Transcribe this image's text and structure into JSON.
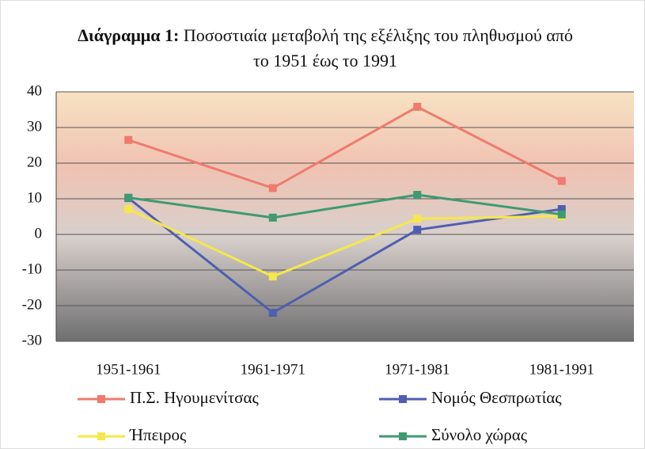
{
  "chart_data": {
    "type": "line",
    "title_label": "Διάγραμμα 1:",
    "title": "Ποσοστιαία μεταβολή της εξέλιξης του πληθυσμού από το 1951 έως το 1991",
    "categories": [
      "1951-1961",
      "1961-1971",
      "1971-1981",
      "1981-1991"
    ],
    "series": [
      {
        "name": "Π.Σ. Ηγουμενίτσας",
        "color": "#f07a6e",
        "values": [
          26.5,
          13,
          35.8,
          15
        ]
      },
      {
        "name": "Νομός Θεσπρωτίας",
        "color": "#4f5fb0",
        "values": [
          10.2,
          -22,
          1.3,
          7.1
        ]
      },
      {
        "name": "Ήπειρος",
        "color": "#f5e84a",
        "values": [
          7.1,
          -11.8,
          4.4,
          5.1
        ]
      },
      {
        "name": "Σύνολο χώρας",
        "color": "#3e9a72",
        "values": [
          10.3,
          4.7,
          11.1,
          5.6
        ]
      }
    ],
    "ylim": [
      -30,
      40
    ],
    "yticks": [
      -30,
      -20,
      -10,
      0,
      10,
      20,
      30,
      40
    ],
    "grid": true
  }
}
